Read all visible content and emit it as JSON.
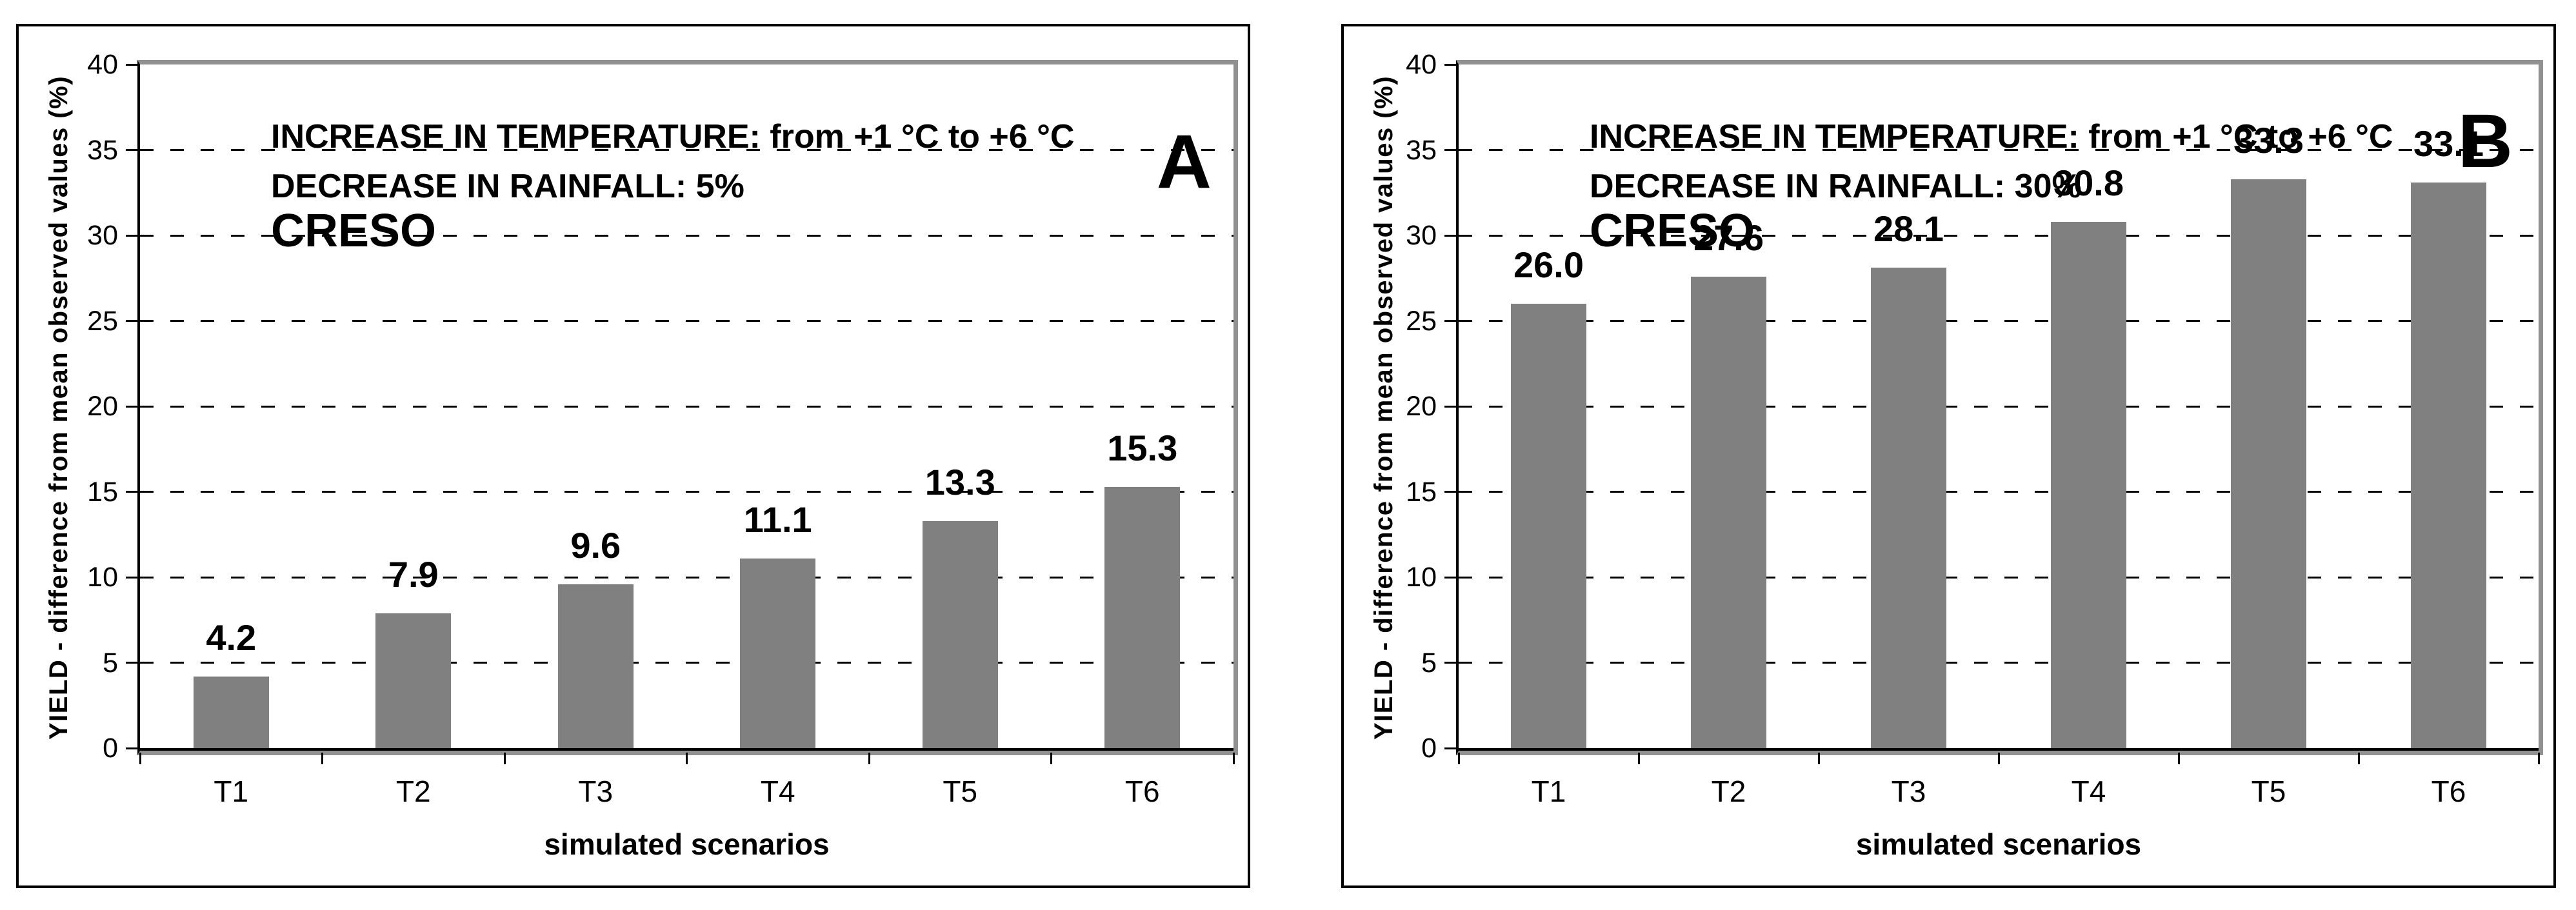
{
  "chart_data": [
    {
      "type": "bar",
      "panel_label": "A",
      "annotations": [
        "INCREASE IN TEMPERATURE: from +1 °C to +6 °C",
        "DECREASE IN RAINFALL: 5%",
        "CRESO"
      ],
      "categories": [
        "T1",
        "T2",
        "T3",
        "T4",
        "T5",
        "T6"
      ],
      "values": [
        4.2,
        7.9,
        9.6,
        11.1,
        13.3,
        15.3
      ],
      "data_labels": [
        "4.2",
        "7.9",
        "9.6",
        "11.1",
        "13.3",
        "15.3"
      ],
      "xlabel": "simulated scenarios",
      "ylabel": "YIELD - difference from mean observed values (%)",
      "ylim": [
        0,
        40
      ],
      "yticks": [
        0,
        5,
        10,
        15,
        20,
        25,
        30,
        35,
        40
      ],
      "grid": "horizontal-dashed-black",
      "legend": "none",
      "bar_color": "#808080",
      "plot_border_color": "#919191"
    },
    {
      "type": "bar",
      "panel_label": "B",
      "annotations": [
        "INCREASE IN TEMPERATURE: from +1 °C to +6 °C",
        "DECREASE IN RAINFALL: 30%",
        "CRESO"
      ],
      "categories": [
        "T1",
        "T2",
        "T3",
        "T4",
        "T5",
        "T6"
      ],
      "values": [
        26.0,
        27.6,
        28.1,
        30.8,
        33.3,
        33.1
      ],
      "data_labels": [
        "26.0",
        "27.6",
        "28.1",
        "30.8",
        "33.3",
        "33.1"
      ],
      "xlabel": "simulated scenarios",
      "ylabel": "YIELD - difference from mean observed values (%)",
      "ylim": [
        0,
        40
      ],
      "yticks": [
        0,
        5,
        10,
        15,
        20,
        25,
        30,
        35,
        40
      ],
      "grid": "horizontal-dashed-black",
      "legend": "none",
      "bar_color": "#808080",
      "plot_border_color": "#919191"
    }
  ]
}
